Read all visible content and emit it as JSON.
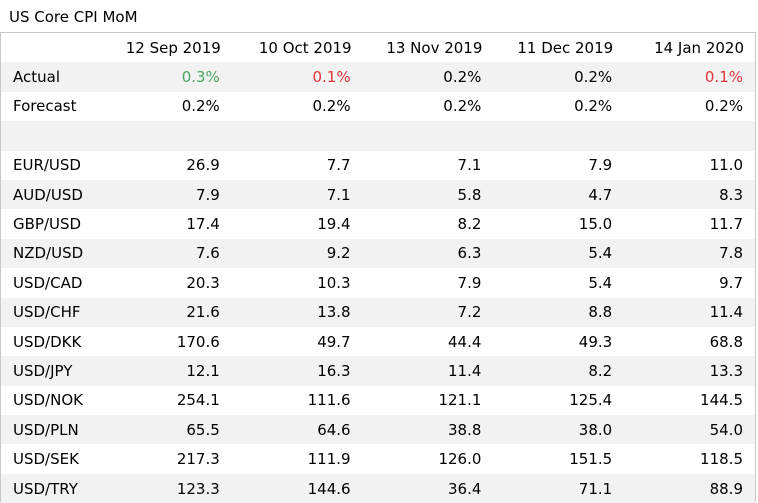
{
  "title": "US Core CPI MoM",
  "dates": [
    "12 Sep 2019",
    "10 Oct 2019",
    "13 Nov 2019",
    "11 Dec 2019",
    "14 Jan 2020"
  ],
  "actual": {
    "label": "Actual",
    "values": [
      "0.3%",
      "0.1%",
      "0.2%",
      "0.2%",
      "0.1%"
    ],
    "colors": [
      "#4aa564",
      "#e3353b",
      "#000000",
      "#000000",
      "#e3353b"
    ]
  },
  "forecast": {
    "label": "Forecast",
    "values": [
      "0.2%",
      "0.2%",
      "0.2%",
      "0.2%",
      "0.2%"
    ]
  },
  "pairs": [
    {
      "pair": "EUR/USD",
      "values": [
        "26.9",
        "7.7",
        "7.1",
        "7.9",
        "11.0"
      ]
    },
    {
      "pair": "AUD/USD",
      "values": [
        "7.9",
        "7.1",
        "5.8",
        "4.7",
        "8.3"
      ]
    },
    {
      "pair": "GBP/USD",
      "values": [
        "17.4",
        "19.4",
        "8.2",
        "15.0",
        "11.7"
      ]
    },
    {
      "pair": "NZD/USD",
      "values": [
        "7.6",
        "9.2",
        "6.3",
        "5.4",
        "7.8"
      ]
    },
    {
      "pair": "USD/CAD",
      "values": [
        "20.3",
        "10.3",
        "7.9",
        "5.4",
        "9.7"
      ]
    },
    {
      "pair": "USD/CHF",
      "values": [
        "21.6",
        "13.8",
        "7.2",
        "8.8",
        "11.4"
      ]
    },
    {
      "pair": "USD/DKK",
      "values": [
        "170.6",
        "49.7",
        "44.4",
        "49.3",
        "68.8"
      ]
    },
    {
      "pair": "USD/JPY",
      "values": [
        "12.1",
        "16.3",
        "11.4",
        "8.2",
        "13.3"
      ]
    },
    {
      "pair": "USD/NOK",
      "values": [
        "254.1",
        "111.6",
        "121.1",
        "125.4",
        "144.5"
      ]
    },
    {
      "pair": "USD/PLN",
      "values": [
        "65.5",
        "64.6",
        "38.8",
        "38.0",
        "54.0"
      ]
    },
    {
      "pair": "USD/SEK",
      "values": [
        "217.3",
        "111.9",
        "126.0",
        "151.5",
        "118.5"
      ]
    },
    {
      "pair": "USD/TRY",
      "values": [
        "123.3",
        "144.6",
        "36.4",
        "71.1",
        "88.9"
      ]
    }
  ]
}
